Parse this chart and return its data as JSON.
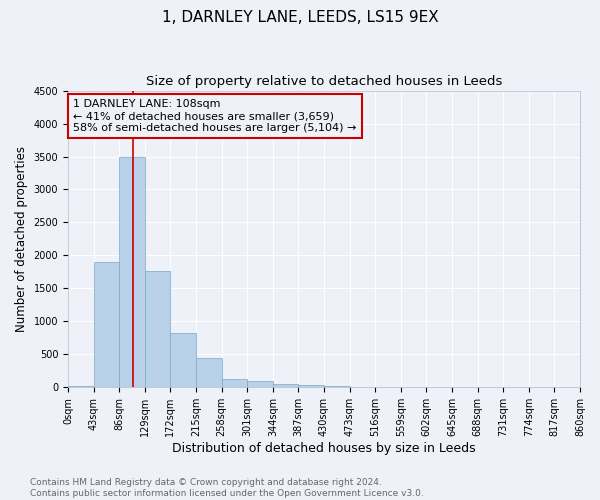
{
  "title": "1, DARNLEY LANE, LEEDS, LS15 9EX",
  "subtitle": "Size of property relative to detached houses in Leeds",
  "xlabel": "Distribution of detached houses by size in Leeds",
  "ylabel": "Number of detached properties",
  "bar_color": "#b8d0e8",
  "bar_edge_color": "#7aaac8",
  "bin_labels": [
    "0sqm",
    "43sqm",
    "86sqm",
    "129sqm",
    "172sqm",
    "215sqm",
    "258sqm",
    "301sqm",
    "344sqm",
    "387sqm",
    "430sqm",
    "473sqm",
    "516sqm",
    "559sqm",
    "602sqm",
    "645sqm",
    "688sqm",
    "731sqm",
    "774sqm",
    "817sqm",
    "860sqm"
  ],
  "bar_heights": [
    28,
    1900,
    3500,
    1760,
    830,
    440,
    130,
    90,
    55,
    38,
    22,
    8,
    0,
    0,
    0,
    0,
    0,
    0,
    0,
    0
  ],
  "ylim": [
    0,
    4500
  ],
  "yticks": [
    0,
    500,
    1000,
    1500,
    2000,
    2500,
    3000,
    3500,
    4000,
    4500
  ],
  "vline_x_bin": 2.55,
  "vline_color": "#cc0000",
  "annotation_line1": "1 DARNLEY LANE: 108sqm",
  "annotation_line2": "← 41% of detached houses are smaller (3,659)",
  "annotation_line3": "58% of semi-detached houses are larger (5,104) →",
  "annotation_box_color": "#cc0000",
  "footer_text": "Contains HM Land Registry data © Crown copyright and database right 2024.\nContains public sector information licensed under the Open Government Licence v3.0.",
  "background_color": "#eef2f8",
  "grid_color": "#ffffff",
  "title_fontsize": 11,
  "subtitle_fontsize": 9.5,
  "xlabel_fontsize": 9,
  "ylabel_fontsize": 8.5,
  "tick_fontsize": 7,
  "annotation_fontsize": 8,
  "footer_fontsize": 6.5
}
